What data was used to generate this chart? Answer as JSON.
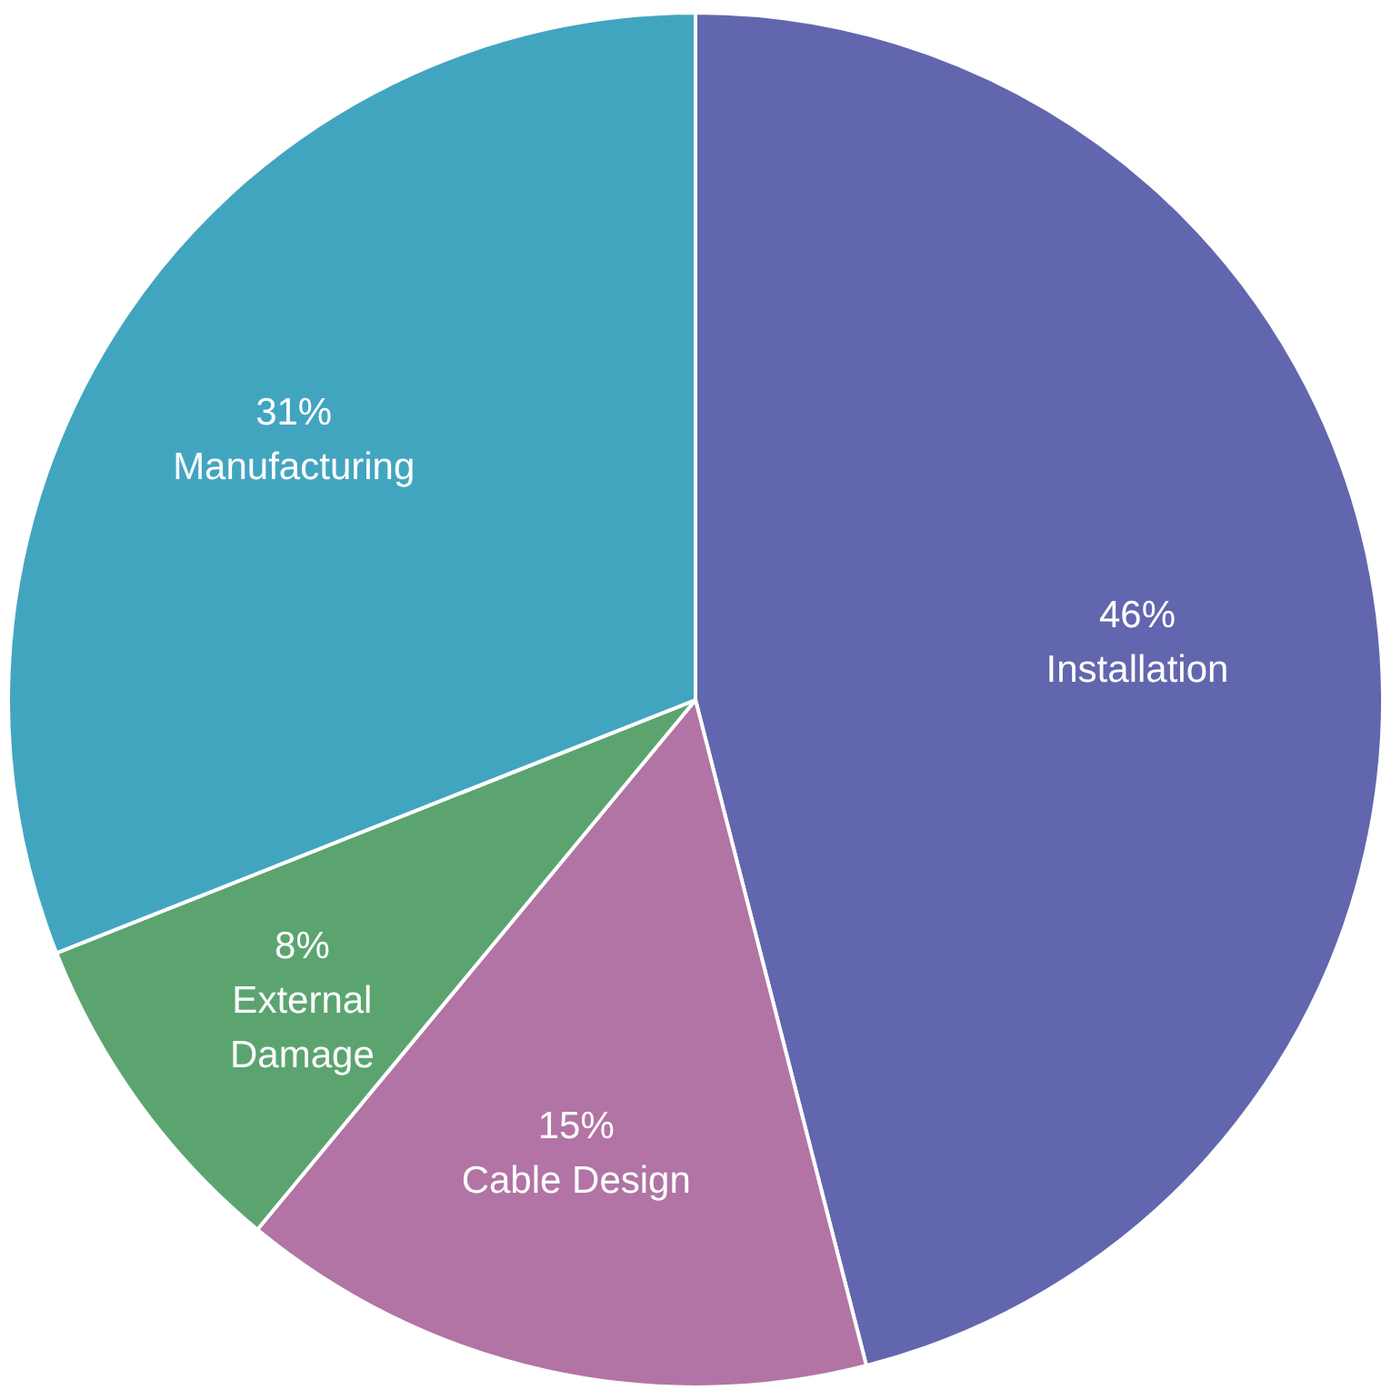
{
  "chart_data": {
    "type": "pie",
    "categories": [
      "Installation",
      "Cable Design",
      "External Damage",
      "Manufacturing"
    ],
    "values": [
      46,
      15,
      8,
      31
    ],
    "colors": [
      "#6266ae",
      "#b174a4",
      "#5ba470",
      "#42a5c0"
    ],
    "value_labels": [
      "46%",
      "15%",
      "8%",
      "31%"
    ],
    "legend": false
  }
}
